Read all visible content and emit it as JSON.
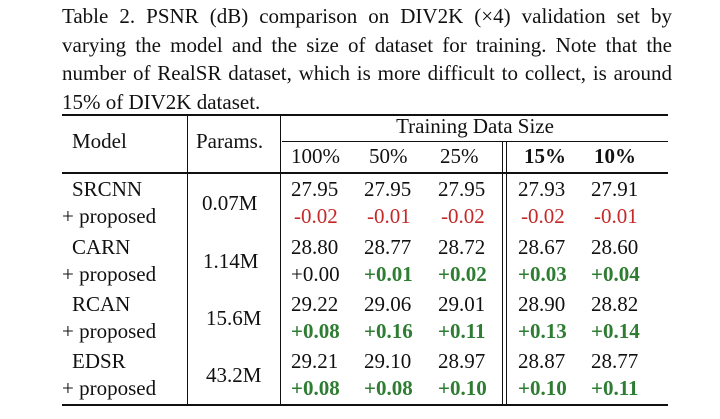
{
  "caption": "Table 2. PSNR (dB) comparison on DIV2K (×4) validation set by varying the model and the size of dataset for training. Note that the number of RealSR dataset, which is more difficult to collect, is around 15% of DIV2K dataset.",
  "table": {
    "col_model": "Model",
    "col_params": "Params.",
    "col_group": "Training Data Size",
    "sizes": [
      "100%",
      "50%",
      "25%",
      "15%",
      "10%"
    ],
    "rows": [
      {
        "model": "SRCNN",
        "variant": "+ proposed",
        "params": "0.07M",
        "psnr": [
          "27.95",
          "27.95",
          "27.95",
          "27.93",
          "27.91"
        ],
        "delta": [
          "-0.02",
          "-0.01",
          "-0.02",
          "-0.02",
          "-0.01"
        ]
      },
      {
        "model": "CARN",
        "variant": "+ proposed",
        "params": "1.14M",
        "psnr": [
          "28.80",
          "28.77",
          "28.72",
          "28.67",
          "28.60"
        ],
        "delta": [
          "+0.00",
          "+0.01",
          "+0.02",
          "+0.03",
          "+0.04"
        ]
      },
      {
        "model": "RCAN",
        "variant": "+ proposed",
        "params": "15.6M",
        "psnr": [
          "29.22",
          "29.06",
          "29.01",
          "28.90",
          "28.82"
        ],
        "delta": [
          "+0.08",
          "+0.16",
          "+0.11",
          "+0.13",
          "+0.14"
        ]
      },
      {
        "model": "EDSR",
        "variant": "+ proposed",
        "params": "43.2M",
        "psnr": [
          "29.21",
          "29.10",
          "28.97",
          "28.87",
          "28.77"
        ],
        "delta": [
          "+0.08",
          "+0.08",
          "+0.10",
          "+0.10",
          "+0.11"
        ]
      }
    ],
    "colors": {
      "negative": "#c62828",
      "positive": "#2e7d32"
    }
  }
}
